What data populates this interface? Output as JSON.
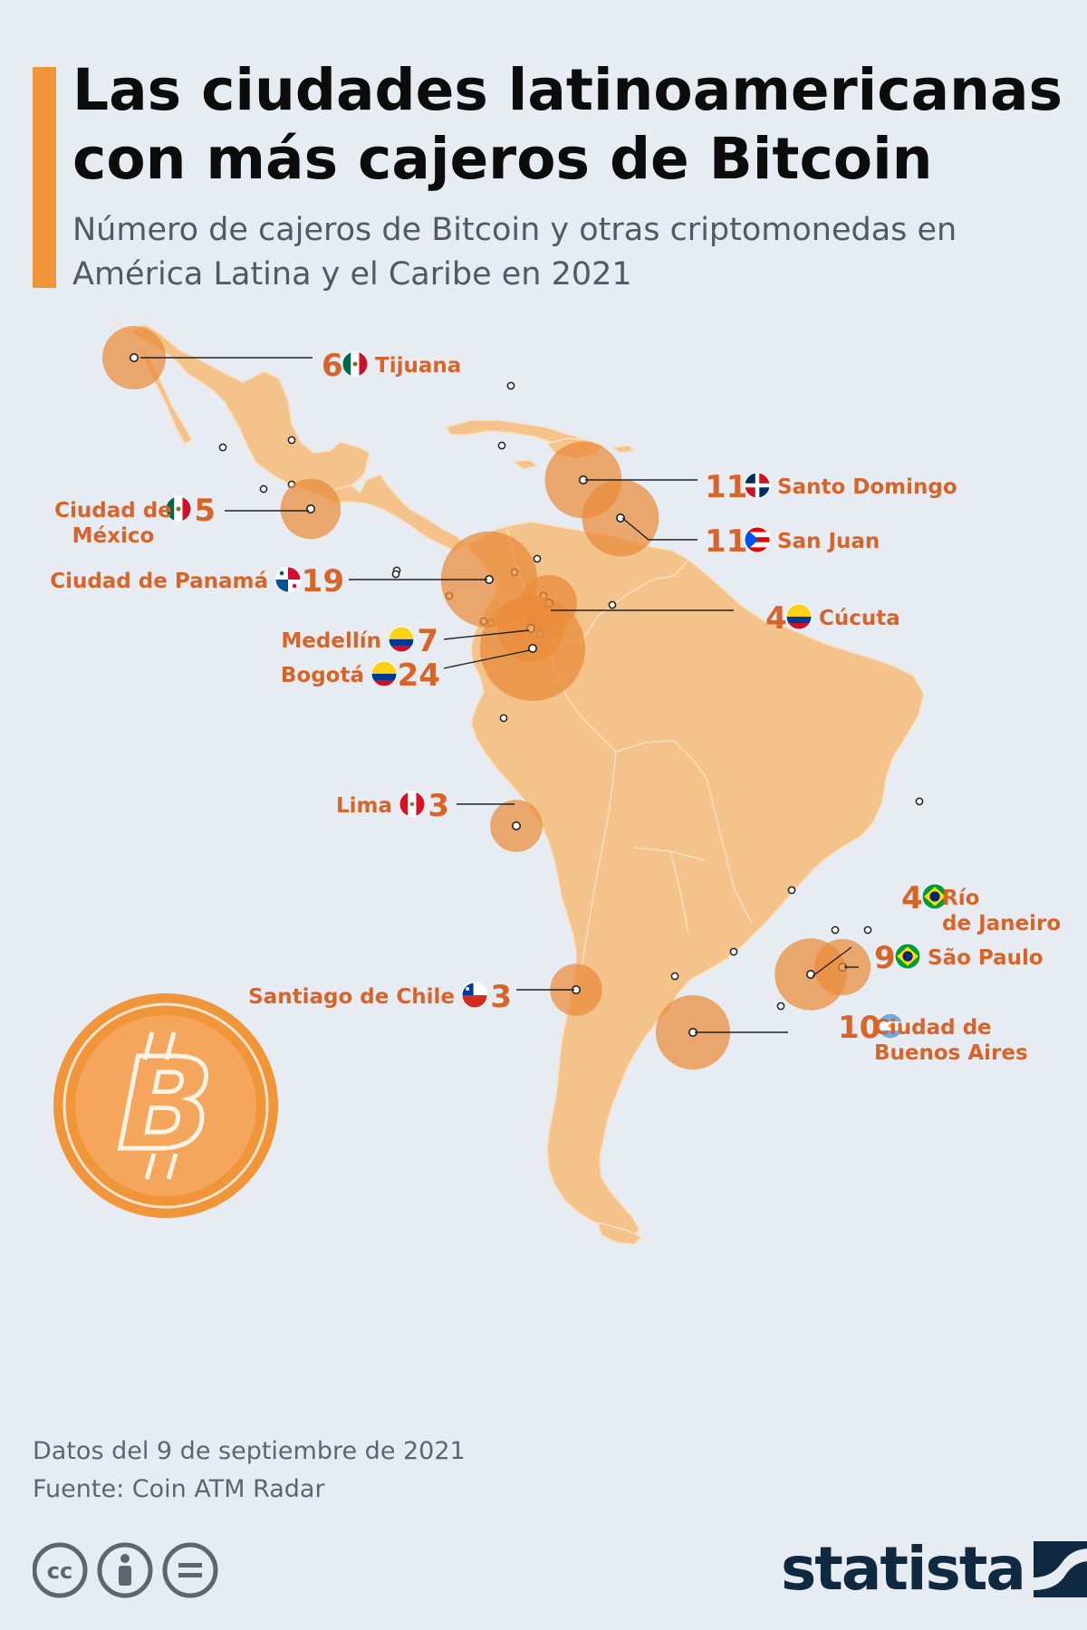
{
  "header": {
    "title": "Las ciudades latinoamericanas con más cajeros de Bitcoin",
    "subtitle": "Número de cajeros de Bitcoin y otras criptomonedas en América Latina y el Caribe en 2021"
  },
  "colors": {
    "accent": "#f0953a",
    "land": "#f4c38c",
    "land_border": "#fbe0c0",
    "bubble": "#ea8a3a",
    "bubble_dark": "#d8612c",
    "label": "#d8642a",
    "background": "#e6ecf1",
    "logo": "#0f2940"
  },
  "cities": [
    {
      "name": "Tijuana",
      "count": 6,
      "country": "México",
      "flag": "mexico-flag"
    },
    {
      "name": "Ciudad de\nMéxico",
      "count": 5,
      "country": "México",
      "flag": "mexico-flag"
    },
    {
      "name": "Santo Domingo",
      "count": 11,
      "country": "República Dominicana",
      "flag": "dominican-republic-flag"
    },
    {
      "name": "San Juan",
      "count": 11,
      "country": "Puerto Rico",
      "flag": "puerto-rico-flag"
    },
    {
      "name": "Ciudad de Panamá",
      "count": 19,
      "country": "Panamá",
      "flag": "panama-flag"
    },
    {
      "name": "Cúcuta",
      "count": 4,
      "country": "Colombia",
      "flag": "colombia-flag"
    },
    {
      "name": "Medellín",
      "count": 7,
      "country": "Colombia",
      "flag": "colombia-flag"
    },
    {
      "name": "Bogotá",
      "count": 24,
      "country": "Colombia",
      "flag": "colombia-flag"
    },
    {
      "name": "Lima",
      "count": 3,
      "country": "Perú",
      "flag": "peru-flag"
    },
    {
      "name": "Río\nde Janeiro",
      "count": 4,
      "country": "Brasil",
      "flag": "brazil-flag"
    },
    {
      "name": "São Paulo",
      "count": 9,
      "country": "Brasil",
      "flag": "brazil-flag"
    },
    {
      "name": "Santiago de Chile",
      "count": 3,
      "country": "Chile",
      "flag": "chile-flag"
    },
    {
      "name": "Ciudad de\nBuenos Aires",
      "count": 10,
      "country": "Argentina",
      "flag": "argentina-flag"
    }
  ],
  "decoration": {
    "coin_icon": "bitcoin-coin-icon"
  },
  "footer": {
    "date_note": "Datos del 9 de septiembre de 2021",
    "source": "Fuente: Coin ATM Radar"
  },
  "license_icons": [
    "creative-commons-icon",
    "attribution-icon",
    "no-derivatives-icon"
  ],
  "brand": {
    "logo_text": "statista"
  }
}
